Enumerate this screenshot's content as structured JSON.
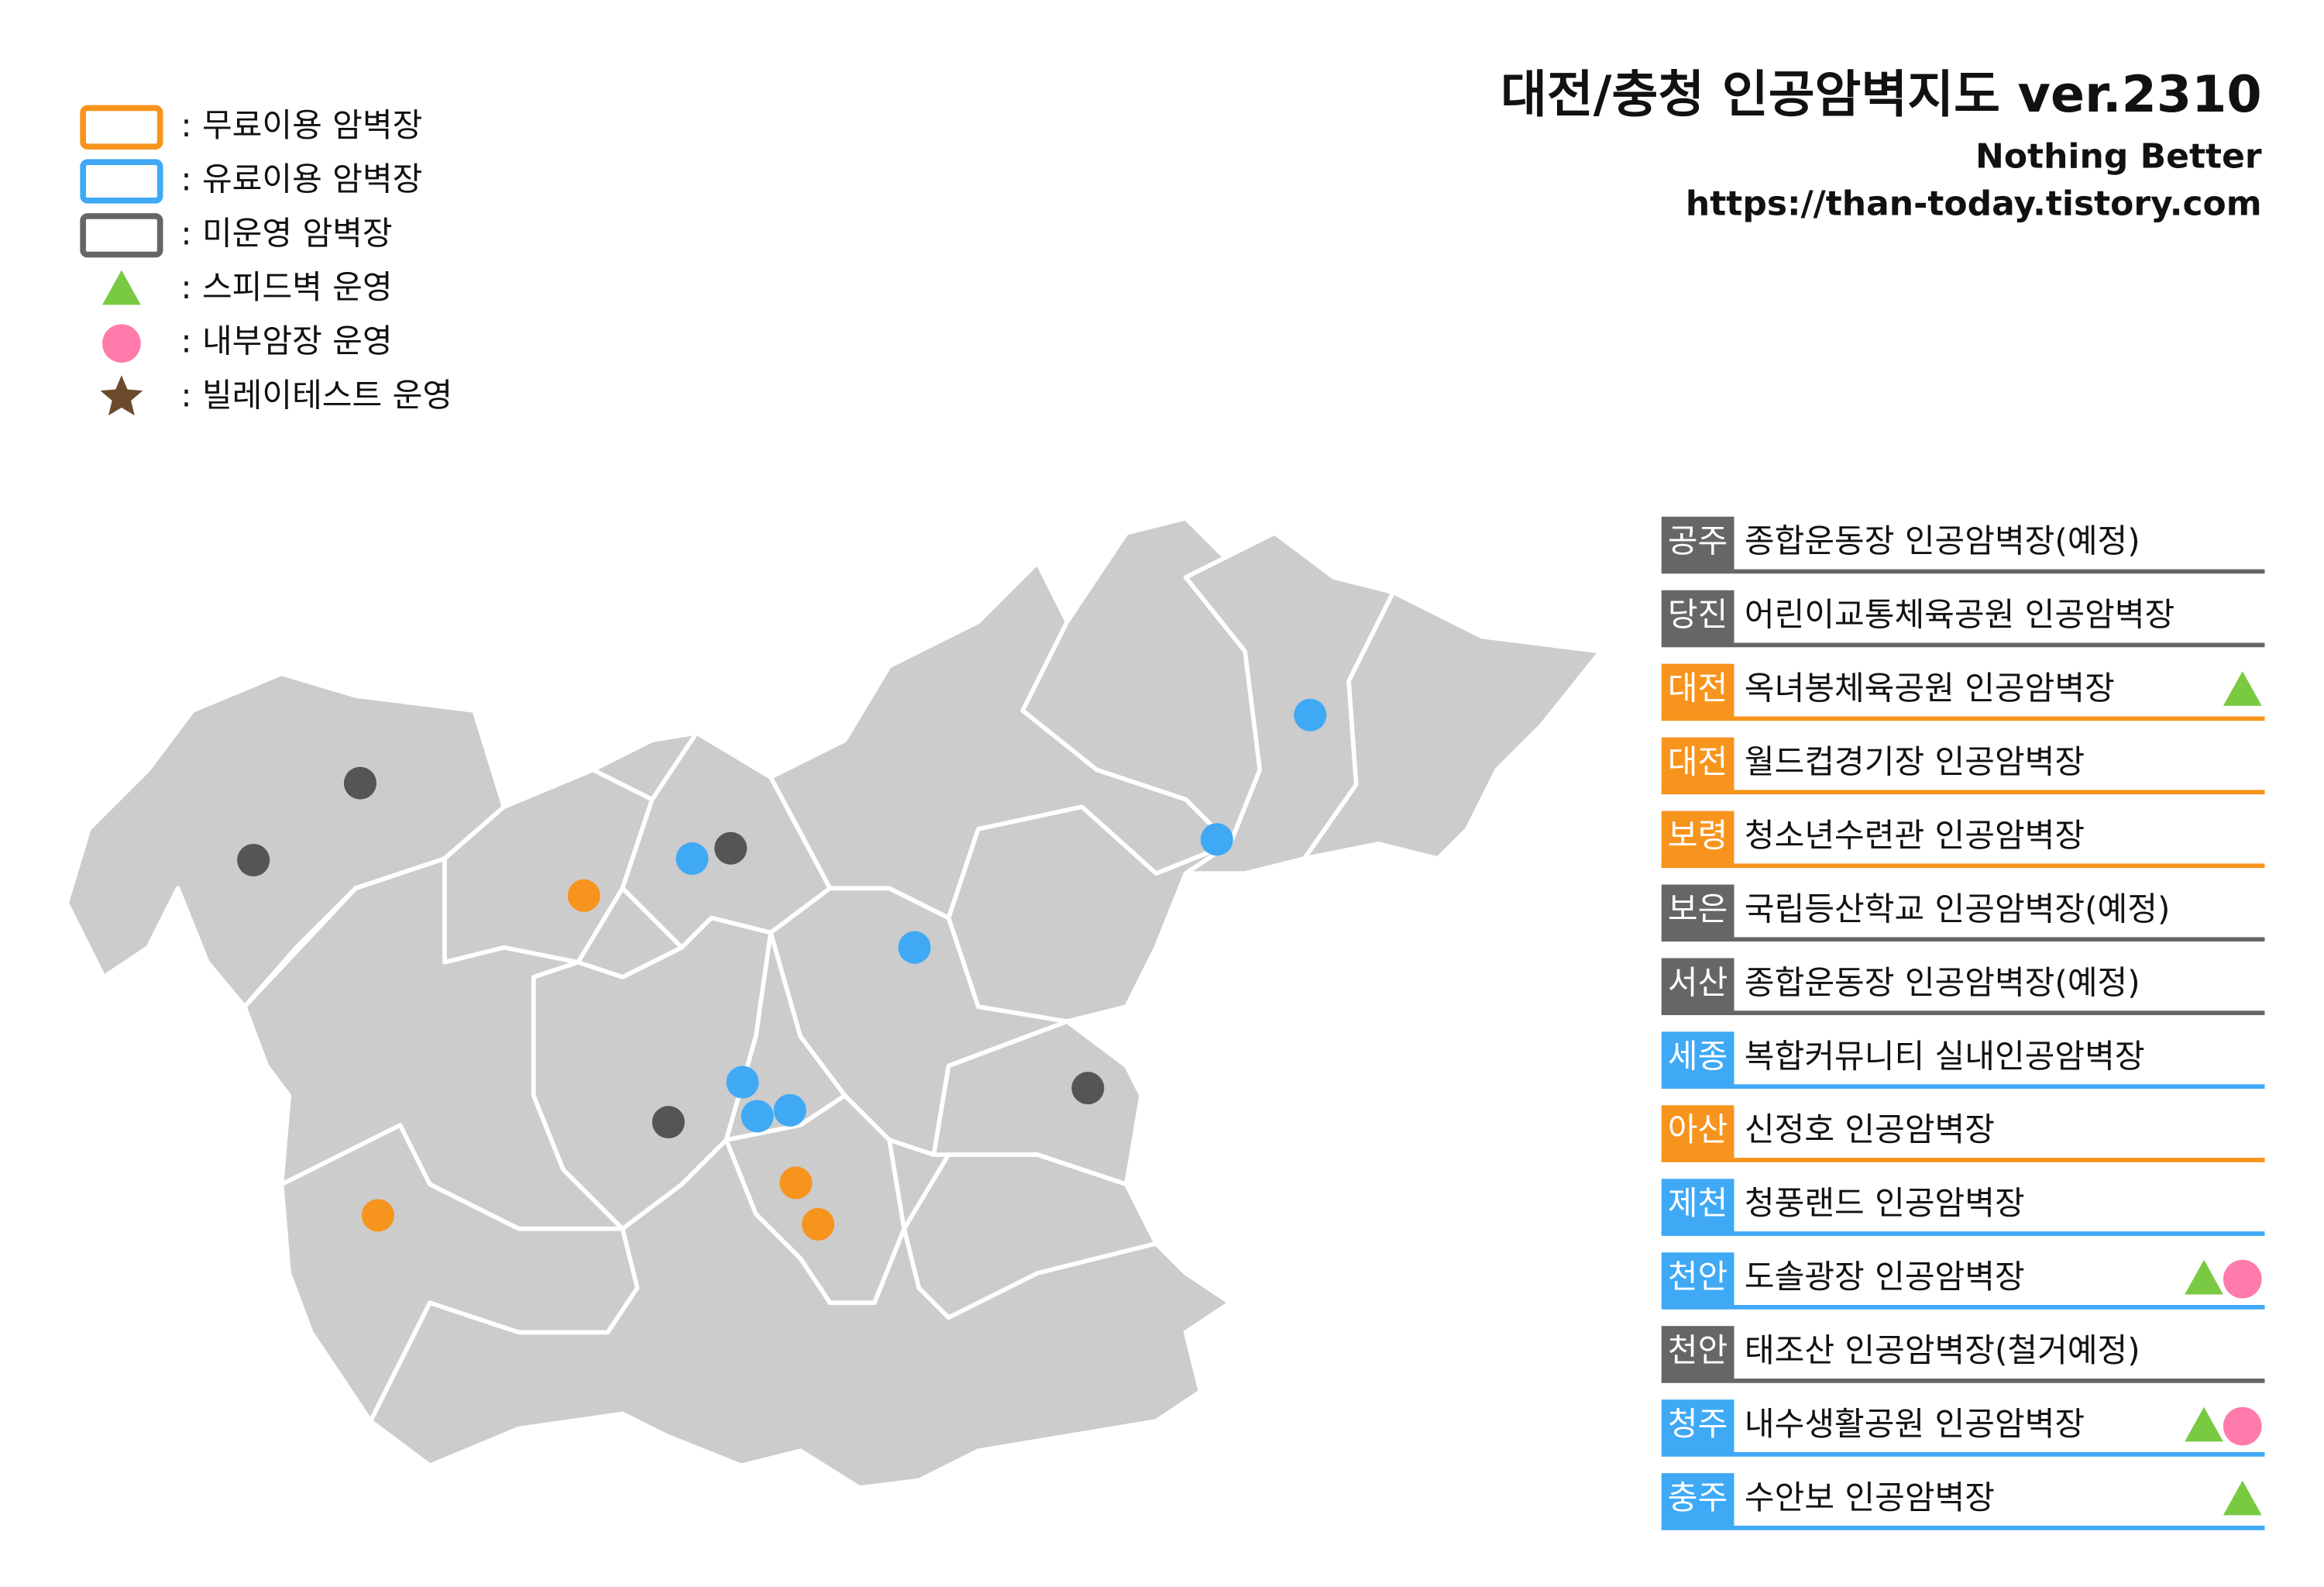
{
  "header": {
    "title": "대전/충청 인공암벽지도 ver.2310",
    "subtitle": "Nothing Better",
    "url": "https://than-today.tistory.com"
  },
  "legend": [
    {
      "label": ": 무료이용 암벽장",
      "color": "#f7941d",
      "shape": "box"
    },
    {
      "label": ": 유료이용 암벽장",
      "color": "#3fa9f5",
      "shape": "box"
    },
    {
      "label": ": 미운영 암벽장",
      "color": "#666666",
      "shape": "box"
    },
    {
      "label": ": 스피드벽 운영",
      "color": "#7ac943",
      "shape": "triangle"
    },
    {
      "label": ": 내부암장 운영",
      "color": "#ff7bac",
      "shape": "circle"
    },
    {
      "label": ": 빌레이테스트 운영",
      "color": "#6b4a2b",
      "shape": "star"
    }
  ],
  "entries": [
    {
      "region": "공주",
      "name": "종합운동장 인공암벽장(예정)",
      "color": "#666666",
      "speed_wall": false,
      "inner_gym": false
    },
    {
      "region": "당진",
      "name": "어린이교통체육공원 인공암벽장",
      "color": "#666666",
      "speed_wall": false,
      "inner_gym": false
    },
    {
      "region": "대전",
      "name": "옥녀봉체육공원 인공암벽장",
      "color": "#f7941d",
      "speed_wall": true,
      "inner_gym": false
    },
    {
      "region": "대전",
      "name": "월드컵경기장 인공암벽장",
      "color": "#f7941d",
      "speed_wall": false,
      "inner_gym": false
    },
    {
      "region": "보령",
      "name": "청소년수련관 인공암벽장",
      "color": "#f7941d",
      "speed_wall": false,
      "inner_gym": false
    },
    {
      "region": "보은",
      "name": "국립등산학교 인공암벽장(예정)",
      "color": "#666666",
      "speed_wall": false,
      "inner_gym": false
    },
    {
      "region": "서산",
      "name": "종합운동장 인공암벽장(예정)",
      "color": "#666666",
      "speed_wall": false,
      "inner_gym": false
    },
    {
      "region": "세종",
      "name": "복합커뮤니티 실내인공암벽장",
      "color": "#3fa9f5",
      "speed_wall": false,
      "inner_gym": false
    },
    {
      "region": "아산",
      "name": "신정호 인공암벽장",
      "color": "#f7941d",
      "speed_wall": false,
      "inner_gym": false
    },
    {
      "region": "제천",
      "name": "청풍랜드 인공암벽장",
      "color": "#3fa9f5",
      "speed_wall": false,
      "inner_gym": false
    },
    {
      "region": "천안",
      "name": "도솔광장 인공암벽장",
      "color": "#3fa9f5",
      "speed_wall": true,
      "inner_gym": true
    },
    {
      "region": "천안",
      "name": "태조산 인공암벽장(철거예정)",
      "color": "#666666",
      "speed_wall": false,
      "inner_gym": false
    },
    {
      "region": "청주",
      "name": "내수생활공원 인공암벽장",
      "color": "#3fa9f5",
      "speed_wall": true,
      "inner_gym": true
    },
    {
      "region": "충주",
      "name": "수안보 인공암벽장",
      "color": "#3fa9f5",
      "speed_wall": true,
      "inner_gym": false
    }
  ]
}
